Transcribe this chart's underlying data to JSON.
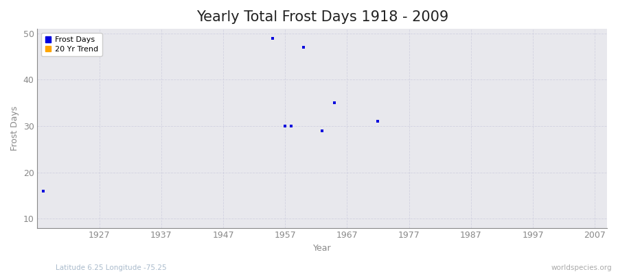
{
  "title": "Yearly Total Frost Days 1918 - 2009",
  "xlabel": "Year",
  "ylabel": "Frost Days",
  "subtitle_left": "Latitude 6.25 Longitude -75.25",
  "subtitle_right": "worldspecies.org",
  "xlim": [
    1917,
    2009
  ],
  "ylim": [
    8,
    51
  ],
  "xticks": [
    1927,
    1937,
    1947,
    1957,
    1967,
    1977,
    1987,
    1997,
    2007
  ],
  "yticks": [
    10,
    20,
    30,
    40,
    50
  ],
  "data_years": [
    1918,
    1955,
    1957,
    1958,
    1960,
    1963,
    1965,
    1972
  ],
  "data_values": [
    16,
    49,
    30,
    30,
    47,
    29,
    35,
    31
  ],
  "point_color": "#0000dd",
  "point_size": 5,
  "fig_bg_color": "#ffffff",
  "plot_bg_color": "#e8e8ed",
  "grid_color": "#ccccdd",
  "legend_frost_color": "#0000dd",
  "legend_trend_color": "#ffa500",
  "title_fontsize": 15,
  "axis_label_fontsize": 9,
  "tick_fontsize": 9,
  "tick_color": "#888888",
  "subtitle_left_color": "#aabbcc",
  "subtitle_right_color": "#aaaaaa"
}
